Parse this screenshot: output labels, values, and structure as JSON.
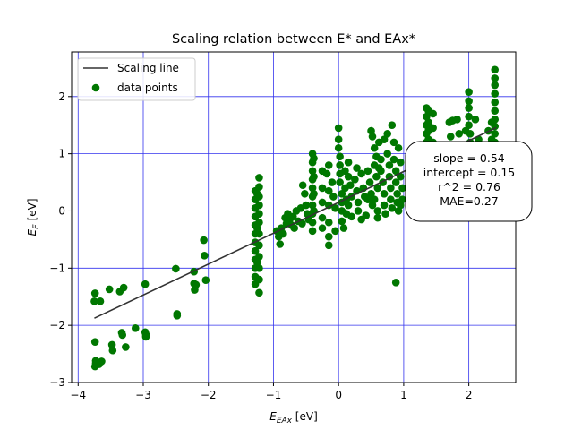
{
  "chart_data": {
    "type": "scatter",
    "title": "Scaling relation between E* and EAx*",
    "xlabel_main": "E",
    "xlabel_sub": "EAx",
    "xlabel_unit": " [eV]",
    "ylabel_main": "E",
    "ylabel_sub": "E",
    "ylabel_unit": " [eV]",
    "xlim": [
      -4.1,
      2.72
    ],
    "ylim": [
      -3.0,
      2.78
    ],
    "xticks": [
      -4,
      -3,
      -2,
      -1,
      0,
      1,
      2
    ],
    "yticks": [
      -3,
      -2,
      -1,
      0,
      1,
      2
    ],
    "xtick_labels": [
      "−4",
      "−3",
      "−2",
      "−1",
      "0",
      "1",
      "2"
    ],
    "ytick_labels": [
      "−3",
      "−2",
      "−1",
      "0",
      "1",
      "2"
    ],
    "grid": true,
    "grid_color": "#3333ee",
    "point_color": "#007700",
    "line_color": "#333333",
    "legend_position": "upper-left",
    "legend": [
      {
        "label": "Scaling line",
        "kind": "line"
      },
      {
        "label": "data points",
        "kind": "marker"
      }
    ],
    "fit": {
      "slope": 0.54,
      "intercept": 0.15,
      "x_range": [
        -3.75,
        2.42
      ]
    },
    "annotation_lines": [
      "slope = 0.54",
      "intercept = 0.15",
      "r^2 = 0.76",
      "MAE=0.27"
    ],
    "series": [
      {
        "name": "data points",
        "points": [
          [
            -3.75,
            -1.58
          ],
          [
            -3.74,
            -1.44
          ],
          [
            -3.66,
            -1.58
          ],
          [
            -3.52,
            -1.37
          ],
          [
            -3.36,
            -1.41
          ],
          [
            -3.3,
            -1.34
          ],
          [
            -3.74,
            -2.29
          ],
          [
            -3.73,
            -2.62
          ],
          [
            -3.73,
            -2.67
          ],
          [
            -3.74,
            -2.72
          ],
          [
            -3.68,
            -2.68
          ],
          [
            -3.64,
            -2.63
          ],
          [
            -3.48,
            -2.34
          ],
          [
            -3.47,
            -2.44
          ],
          [
            -3.33,
            -2.13
          ],
          [
            -3.32,
            -2.17
          ],
          [
            -3.27,
            -2.38
          ],
          [
            -3.12,
            -2.05
          ],
          [
            -2.97,
            -2.12
          ],
          [
            -2.96,
            -2.16
          ],
          [
            -2.96,
            -2.2
          ],
          [
            -2.97,
            -1.28
          ],
          [
            -2.5,
            -1.01
          ],
          [
            -2.48,
            -1.8
          ],
          [
            -2.48,
            -1.83
          ],
          [
            -2.22,
            -1.06
          ],
          [
            -2.22,
            -1.27
          ],
          [
            -2.21,
            -1.38
          ],
          [
            -2.19,
            -1.29
          ],
          [
            -2.07,
            -0.51
          ],
          [
            -2.06,
            -0.78
          ],
          [
            -2.04,
            -1.21
          ],
          [
            -1.28,
            0.35
          ],
          [
            -1.28,
            0.2
          ],
          [
            -1.28,
            0.05
          ],
          [
            -1.28,
            -0.1
          ],
          [
            -1.28,
            -0.25
          ],
          [
            -1.28,
            -0.4
          ],
          [
            -1.28,
            -0.55
          ],
          [
            -1.28,
            -0.7
          ],
          [
            -1.28,
            -0.85
          ],
          [
            -1.28,
            -1.0
          ],
          [
            -1.28,
            -1.15
          ],
          [
            -1.28,
            -1.28
          ],
          [
            -1.22,
            0.58
          ],
          [
            -1.22,
            0.42
          ],
          [
            -1.22,
            0.25
          ],
          [
            -1.22,
            0.1
          ],
          [
            -1.22,
            -0.05
          ],
          [
            -1.22,
            -0.2
          ],
          [
            -1.22,
            -0.4
          ],
          [
            -1.22,
            -0.6
          ],
          [
            -1.22,
            -0.8
          ],
          [
            -1.22,
            -1.0
          ],
          [
            -1.22,
            -1.2
          ],
          [
            -1.22,
            -1.43
          ],
          [
            -1.25,
            0.3
          ],
          [
            -1.25,
            -0.3
          ],
          [
            -1.25,
            -0.9
          ],
          [
            -0.95,
            -0.35
          ],
          [
            -0.92,
            -0.45
          ],
          [
            -0.9,
            -0.58
          ],
          [
            -0.88,
            -0.3
          ],
          [
            -0.85,
            -0.4
          ],
          [
            -0.82,
            -0.12
          ],
          [
            -0.8,
            -0.22
          ],
          [
            -0.78,
            -0.05
          ],
          [
            -0.75,
            -0.15
          ],
          [
            -0.72,
            -0.25
          ],
          [
            -0.7,
            -0.1
          ],
          [
            -0.68,
            -0.3
          ],
          [
            -0.65,
            0.0
          ],
          [
            -0.62,
            -0.18
          ],
          [
            -0.58,
            0.05
          ],
          [
            -0.56,
            -0.22
          ],
          [
            -0.55,
            0.45
          ],
          [
            -0.52,
            0.3
          ],
          [
            -0.5,
            0.1
          ],
          [
            -0.48,
            -0.05
          ],
          [
            -0.46,
            -0.15
          ],
          [
            -0.4,
            1.0
          ],
          [
            -0.4,
            0.85
          ],
          [
            -0.4,
            0.7
          ],
          [
            -0.4,
            0.55
          ],
          [
            -0.4,
            0.4
          ],
          [
            -0.4,
            0.25
          ],
          [
            -0.4,
            0.1
          ],
          [
            -0.4,
            -0.05
          ],
          [
            -0.4,
            -0.2
          ],
          [
            -0.4,
            -0.35
          ],
          [
            -0.38,
            0.92
          ],
          [
            -0.38,
            0.6
          ],
          [
            -0.38,
            0.3
          ],
          [
            -0.38,
            0.0
          ],
          [
            -0.25,
            0.7
          ],
          [
            -0.25,
            0.4
          ],
          [
            -0.25,
            0.15
          ],
          [
            -0.25,
            -0.12
          ],
          [
            -0.25,
            -0.3
          ],
          [
            -0.18,
            0.65
          ],
          [
            -0.15,
            0.8
          ],
          [
            -0.15,
            0.35
          ],
          [
            -0.15,
            0.1
          ],
          [
            -0.15,
            -0.2
          ],
          [
            -0.15,
            -0.45
          ],
          [
            -0.15,
            -0.6
          ],
          [
            -0.1,
            0.5
          ],
          [
            -0.08,
            0.25
          ],
          [
            -0.05,
            0.05
          ],
          [
            -0.05,
            -0.35
          ],
          [
            0.0,
            1.45
          ],
          [
            0.0,
            1.25
          ],
          [
            0.0,
            1.1
          ],
          [
            0.02,
            0.95
          ],
          [
            0.02,
            0.8
          ],
          [
            0.02,
            0.65
          ],
          [
            0.02,
            0.5
          ],
          [
            0.05,
            0.3
          ],
          [
            0.05,
            0.15
          ],
          [
            0.05,
            0.0
          ],
          [
            0.05,
            -0.18
          ],
          [
            0.08,
            -0.3
          ],
          [
            0.1,
            0.4
          ],
          [
            0.12,
            0.2
          ],
          [
            0.12,
            -0.05
          ],
          [
            0.15,
            0.6
          ],
          [
            0.15,
            0.1
          ],
          [
            0.18,
            0.45
          ],
          [
            0.2,
            0.25
          ],
          [
            0.2,
            -0.1
          ],
          [
            0.25,
            0.55
          ],
          [
            0.28,
            0.35
          ],
          [
            0.3,
            0.15
          ],
          [
            0.3,
            0.0
          ],
          [
            0.35,
            0.65
          ],
          [
            0.38,
            0.4
          ],
          [
            0.4,
            0.25
          ],
          [
            0.42,
            -0.08
          ],
          [
            0.45,
            0.7
          ],
          [
            0.48,
            0.5
          ],
          [
            0.5,
            0.3
          ],
          [
            0.52,
            0.1
          ],
          [
            0.55,
            0.8
          ],
          [
            0.55,
            0.2
          ],
          [
            0.5,
            1.4
          ],
          [
            0.52,
            1.3
          ],
          [
            0.55,
            1.1
          ],
          [
            0.58,
            0.95
          ],
          [
            0.58,
            0.6
          ],
          [
            0.6,
            0.4
          ],
          [
            0.6,
            0.0
          ],
          [
            0.62,
            1.2
          ],
          [
            0.65,
            0.9
          ],
          [
            0.65,
            0.7
          ],
          [
            0.68,
            0.5
          ],
          [
            0.7,
            0.3
          ],
          [
            0.7,
            0.1
          ],
          [
            0.72,
            -0.05
          ],
          [
            0.75,
            1.35
          ],
          [
            0.75,
            1.0
          ],
          [
            0.78,
            0.8
          ],
          [
            0.78,
            0.6
          ],
          [
            0.8,
            0.4
          ],
          [
            0.8,
            0.2
          ],
          [
            0.82,
            0.05
          ],
          [
            0.82,
            1.5
          ],
          [
            0.85,
            1.2
          ],
          [
            0.85,
            0.9
          ],
          [
            0.88,
            0.7
          ],
          [
            0.88,
            0.5
          ],
          [
            0.9,
            0.3
          ],
          [
            0.9,
            0.15
          ],
          [
            0.92,
            0.0
          ],
          [
            0.92,
            1.1
          ],
          [
            0.95,
            0.85
          ],
          [
            0.95,
            0.6
          ],
          [
            0.98,
            0.4
          ],
          [
            0.98,
            0.2
          ],
          [
            0.88,
            -1.25
          ],
          [
            0.6,
            -0.12
          ],
          [
            0.45,
            0.2
          ],
          [
            0.35,
            -0.15
          ],
          [
            0.28,
            0.75
          ],
          [
            0.15,
            0.85
          ],
          [
            0.1,
            0.7
          ],
          [
            0.95,
            0.1
          ],
          [
            0.7,
            1.25
          ],
          [
            0.62,
            0.75
          ],
          [
            1.25,
            0.2
          ],
          [
            1.3,
            0.45
          ],
          [
            1.35,
            0.6
          ],
          [
            1.35,
            0.3
          ],
          [
            1.4,
            0.15
          ],
          [
            1.42,
            0.5
          ],
          [
            1.45,
            0.85
          ],
          [
            1.45,
            0.7
          ],
          [
            1.48,
            0.35
          ],
          [
            1.5,
            0.05
          ],
          [
            1.55,
            0.6
          ],
          [
            1.58,
            0.25
          ],
          [
            1.4,
            1.0
          ],
          [
            1.4,
            0.85
          ],
          [
            1.35,
            1.8
          ],
          [
            1.35,
            1.65
          ],
          [
            1.35,
            1.5
          ],
          [
            1.35,
            1.35
          ],
          [
            1.35,
            1.2
          ],
          [
            1.35,
            1.05
          ],
          [
            1.38,
            1.75
          ],
          [
            1.38,
            1.55
          ],
          [
            1.38,
            1.4
          ],
          [
            1.38,
            1.25
          ],
          [
            1.38,
            1.1
          ],
          [
            1.45,
            1.7
          ],
          [
            1.45,
            1.45
          ],
          [
            1.45,
            1.2
          ],
          [
            1.7,
            1.55
          ],
          [
            1.72,
            1.3
          ],
          [
            1.75,
            1.1
          ],
          [
            1.75,
            0.85
          ],
          [
            1.78,
            0.6
          ],
          [
            1.8,
            1.0
          ],
          [
            1.82,
            1.6
          ],
          [
            1.85,
            1.35
          ],
          [
            1.85,
            1.05
          ],
          [
            1.88,
            0.75
          ],
          [
            1.9,
            0.5
          ],
          [
            1.9,
            0.3
          ],
          [
            1.95,
            1.4
          ],
          [
            1.95,
            1.15
          ],
          [
            1.95,
            0.95
          ],
          [
            1.98,
            0.7
          ],
          [
            2.0,
            2.08
          ],
          [
            2.0,
            1.92
          ],
          [
            2.0,
            1.8
          ],
          [
            2.0,
            1.65
          ],
          [
            2.0,
            1.5
          ],
          [
            2.02,
            1.35
          ],
          [
            2.02,
            1.2
          ],
          [
            2.05,
            1.05
          ],
          [
            2.05,
            0.9
          ],
          [
            2.08,
            0.65
          ],
          [
            2.1,
            0.45
          ],
          [
            2.12,
            0.25
          ],
          [
            2.15,
            1.25
          ],
          [
            2.18,
            1.0
          ],
          [
            2.2,
            0.8
          ],
          [
            2.22,
            0.55
          ],
          [
            2.25,
            0.35
          ],
          [
            2.28,
            0.15
          ],
          [
            2.3,
            1.4
          ],
          [
            2.32,
            1.1
          ],
          [
            2.35,
            0.9
          ],
          [
            2.38,
            0.6
          ],
          [
            2.4,
            2.47
          ],
          [
            2.4,
            2.32
          ],
          [
            2.4,
            2.2
          ],
          [
            2.4,
            2.05
          ],
          [
            2.4,
            1.9
          ],
          [
            2.4,
            1.75
          ],
          [
            2.4,
            1.6
          ],
          [
            2.4,
            1.48
          ],
          [
            2.4,
            1.35
          ],
          [
            2.4,
            1.2
          ],
          [
            2.4,
            1.05
          ],
          [
            2.4,
            0.88
          ],
          [
            2.4,
            0.72
          ],
          [
            2.4,
            0.55
          ],
          [
            2.4,
            0.4
          ],
          [
            2.4,
            0.22
          ],
          [
            2.35,
            1.55
          ],
          [
            2.35,
            1.25
          ],
          [
            2.1,
            1.6
          ],
          [
            1.75,
            1.58
          ]
        ]
      }
    ]
  }
}
